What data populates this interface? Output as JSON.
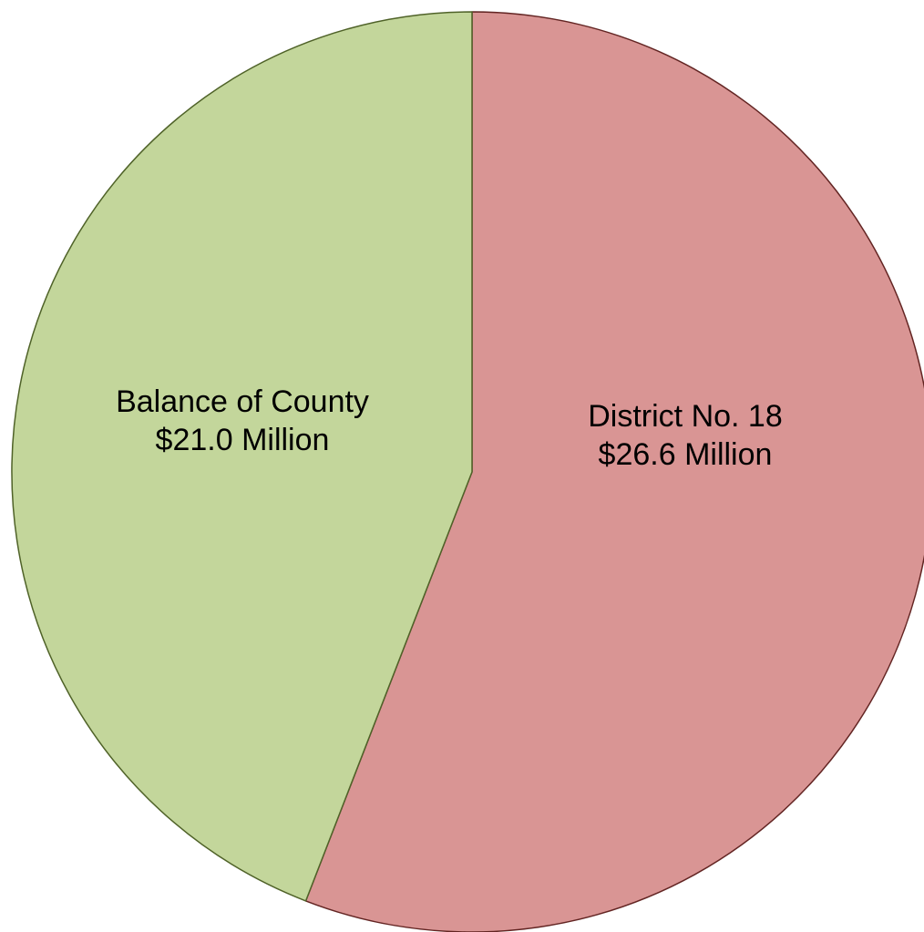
{
  "chart_data": {
    "type": "pie",
    "start_angle": "12 o'clock",
    "direction": "clockwise",
    "slices": [
      {
        "label": "District No. 18",
        "value": 26.6,
        "value_label": "$26.6 Million",
        "color": "#d99594",
        "edge_color": "#632523"
      },
      {
        "label": "Balance of County",
        "value": 21.0,
        "value_label": "$21.0 Million",
        "color": "#c3d69b",
        "edge_color": "#4f6228"
      }
    ]
  }
}
